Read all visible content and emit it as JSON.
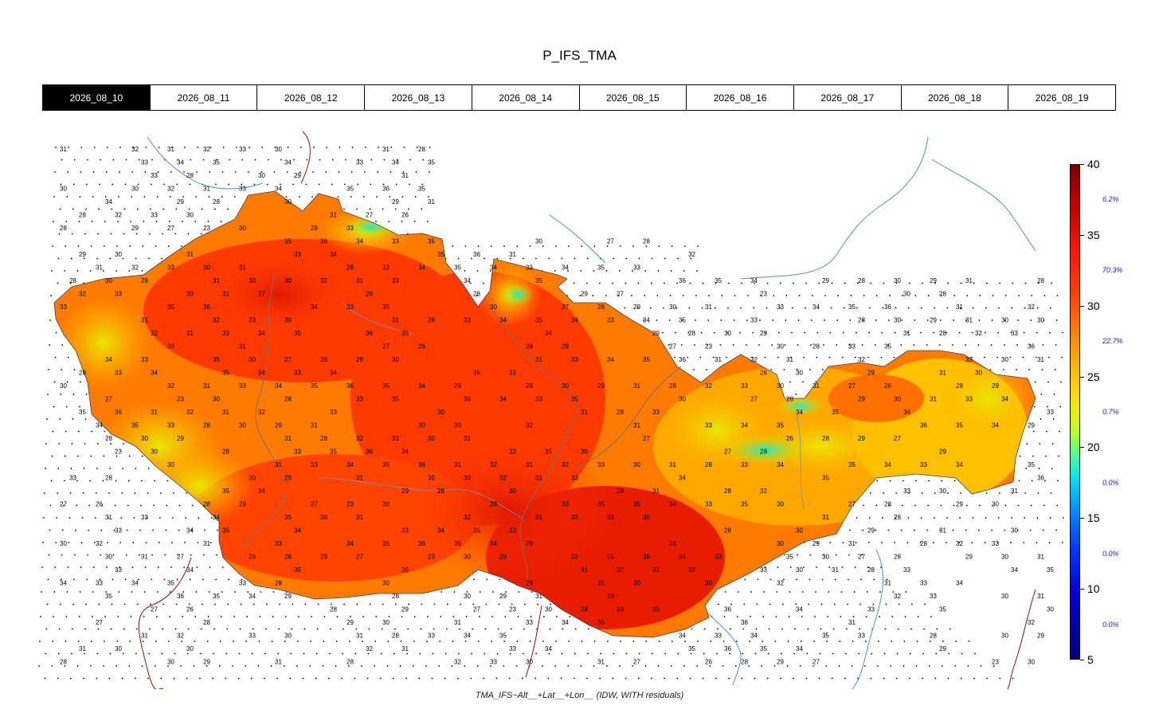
{
  "title": "P_IFS_TMA",
  "date_tabs": [
    {
      "label": "2026_08_10",
      "active": true
    },
    {
      "label": "2026_08_11",
      "active": false
    },
    {
      "label": "2026_08_12",
      "active": false
    },
    {
      "label": "2026_08_13",
      "active": false
    },
    {
      "label": "2026_08_14",
      "active": false
    },
    {
      "label": "2026_08_15",
      "active": false
    },
    {
      "label": "2026_08_16",
      "active": false
    },
    {
      "label": "2026_08_17",
      "active": false
    },
    {
      "label": "2026_08_18",
      "active": false
    },
    {
      "label": "2026_08_19",
      "active": false
    }
  ],
  "formula": "TMA_IFS~Alt__+Lat__+Lon__ (IDW, WITH residuals)",
  "colorbar": {
    "ticks": [
      "40",
      "35",
      "30",
      "25",
      "20",
      "15",
      "10",
      "5"
    ],
    "percentages": [
      "6.2%",
      "70.3%",
      "22.7%",
      "0.7%",
      "0.0%",
      "0.0%",
      "0.0%"
    ],
    "min": 5,
    "max": 40
  },
  "map": {
    "region_colors": {
      "hot": "#ff3000",
      "very_hot": "#e81a00",
      "warm": "#ff7a00",
      "mild": "#ffb400",
      "cool": "#e0e800",
      "cold_spot": "#30e8c0"
    },
    "station_labels": [
      "31",
      "32",
      "31",
      "32",
      "33",
      "30",
      "31",
      "28",
      "33",
      "34",
      "35",
      "34",
      "33",
      "34",
      "35",
      "33",
      "28",
      "30",
      "29",
      "31",
      "30",
      "30",
      "32",
      "31",
      "33",
      "34",
      "35",
      "36",
      "35",
      "34",
      "29",
      "28",
      "30",
      "29",
      "31",
      "28",
      "32",
      "33",
      "30",
      "31",
      "27",
      "26",
      "28",
      "29",
      "27",
      "23",
      "30",
      "28",
      "33",
      "35",
      "36",
      "34",
      "33",
      "35",
      "30",
      "27",
      "28",
      "29",
      "30",
      "31",
      "33",
      "34",
      "35",
      "36"
    ]
  }
}
